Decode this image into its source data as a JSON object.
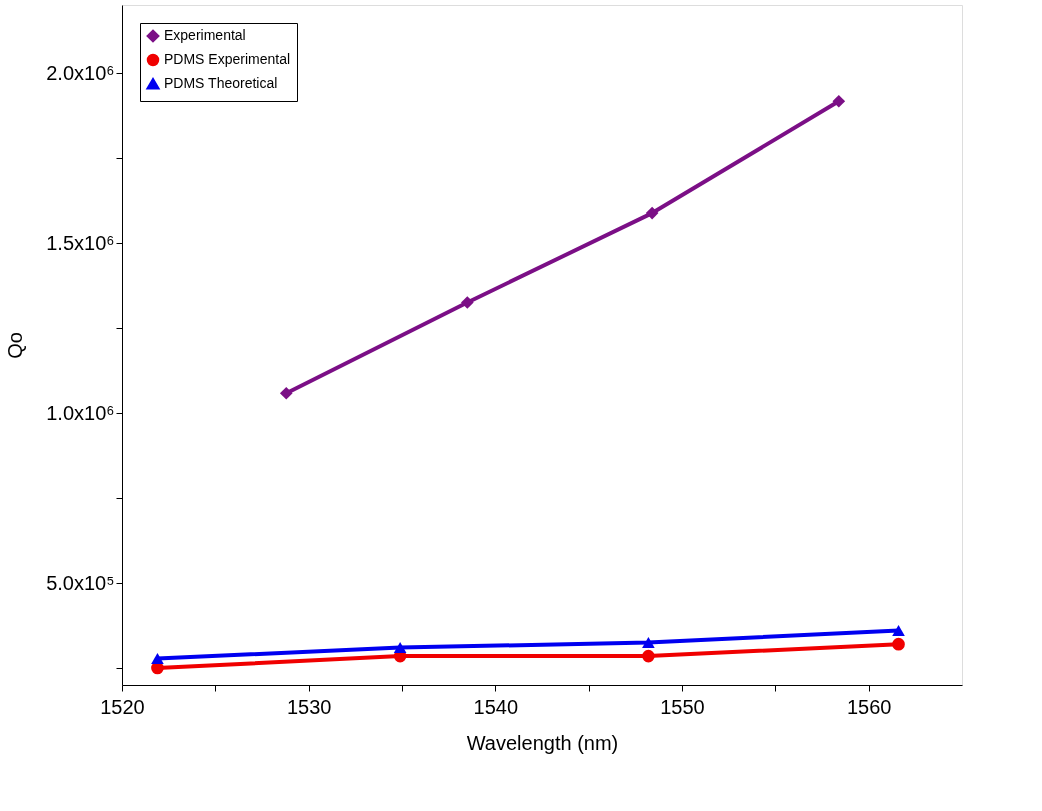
{
  "chart_data": {
    "type": "line",
    "xlabel": "Wavelength (nm)",
    "ylabel": "Qo",
    "xlim": [
      1520,
      1565
    ],
    "ylim": [
      200000,
      2200000
    ],
    "xticks": [
      1520,
      {
        "value": 1525,
        "label": null
      },
      1530,
      {
        "value": 1535,
        "label": null
      },
      1540,
      {
        "value": 1545,
        "label": null
      },
      1550,
      {
        "value": 1555,
        "label": null
      },
      1560
    ],
    "yticks": [
      {
        "value": 250000,
        "label": null
      },
      {
        "value": 500000,
        "label": "5.0x10⁵"
      },
      {
        "value": 750000,
        "label": null
      },
      {
        "value": 1000000,
        "label": "1.0x10⁶"
      },
      {
        "value": 1250000,
        "label": null
      },
      {
        "value": 1500000,
        "label": "1.5x10⁶"
      },
      {
        "value": 1750000,
        "label": null
      },
      {
        "value": 2000000,
        "label": "2.0x10⁶"
      }
    ],
    "grid": false,
    "legend": "top left",
    "line_style": "solid",
    "series": [
      {
        "name": "Experimental",
        "color": "#7b0f86",
        "marker": "diamond",
        "x": [
          1528.8,
          1538.5,
          1548.4,
          1558.4
        ],
        "values": [
          1058000,
          1325000,
          1588000,
          1917000
        ]
      },
      {
        "name": "PDMS Experimental",
        "color": "#f00000",
        "marker": "circle",
        "x": [
          1521.9,
          1534.9,
          1548.2,
          1561.6
        ],
        "values": [
          250000,
          285000,
          285000,
          320000
        ]
      },
      {
        "name": "PDMS Theoretical",
        "color": "#0000f0",
        "marker": "triangle",
        "x": [
          1521.9,
          1534.9,
          1548.2,
          1561.6
        ],
        "values": [
          278000,
          310000,
          325000,
          360000
        ]
      }
    ]
  }
}
